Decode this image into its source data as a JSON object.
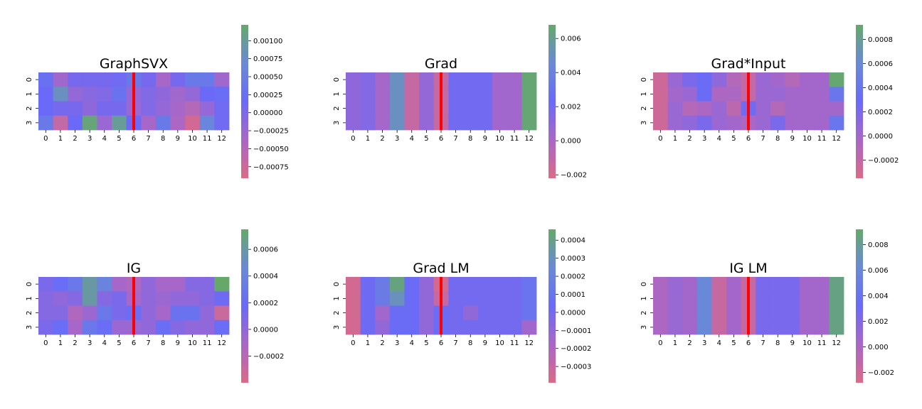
{
  "figure": {
    "colormap": [
      "#dc6a85",
      "#a967c6",
      "#6a6af8",
      "#6a8ad6",
      "#66a86a"
    ]
  },
  "chart_data": [
    {
      "type": "heatmap",
      "title": "GraphSVX",
      "x_ticks": [
        "0",
        "1",
        "2",
        "3",
        "4",
        "5",
        "6",
        "7",
        "8",
        "9",
        "10",
        "11",
        "12"
      ],
      "y_ticks": [
        "0",
        "1",
        "2",
        "3"
      ],
      "vmin": -0.00091,
      "vmax": 0.00122,
      "colorbar_ticks": [
        "0.00100",
        "0.00075",
        "0.00050",
        "0.00025",
        "0.00000",
        "−0.00025",
        "−0.00050",
        "−0.00075"
      ],
      "colorbar_values": [
        0.001,
        0.00075,
        0.0005,
        0.00025,
        0,
        -0.00025,
        -0.0005,
        -0.00075
      ],
      "divider_after_column": 6,
      "divider_color": "#ff0000",
      "values": [
        [
          0.00025,
          -0.0003,
          5e-05,
          5e-05,
          5e-05,
          0.0001,
          0.0004,
          5e-05,
          -0.00035,
          5e-05,
          0.0004,
          0.0004,
          -0.0003
        ],
        [
          0.00015,
          0.0008,
          -0.0002,
          -0.0001,
          -5e-05,
          0.0003,
          -0.0002,
          -5e-05,
          -0.00015,
          -0.0003,
          -0.0002,
          0.00015,
          0.0002
        ],
        [
          0.00015,
          5e-05,
          5e-05,
          -0.00015,
          5e-05,
          5e-05,
          -0.00025,
          -5e-05,
          -0.0002,
          -0.00035,
          -0.0005,
          -0.0002,
          0.0001
        ],
        [
          0.0004,
          -0.00065,
          0.00015,
          0.00115,
          -0.00025,
          0.001,
          0.00015,
          -0.00035,
          0.0004,
          -0.0004,
          -0.0008,
          0.0006,
          0.0001
        ]
      ]
    },
    {
      "type": "heatmap",
      "title": "Grad",
      "x_ticks": [
        "0",
        "1",
        "2",
        "3",
        "4",
        "5",
        "6",
        "7",
        "8",
        "9",
        "10",
        "11",
        "12"
      ],
      "y_ticks": [
        "0",
        "1",
        "2",
        "3"
      ],
      "vmin": -0.0022,
      "vmax": 0.0068,
      "colorbar_ticks": [
        "0.006",
        "0.004",
        "0.002",
        "0.000",
        "−0.002"
      ],
      "colorbar_values": [
        0.006,
        0.004,
        0.002,
        0,
        -0.002
      ],
      "divider_after_column": 6,
      "divider_color": "#ff0000",
      "values": [
        [
          0.001,
          0.0014,
          0.0002,
          0.005,
          -0.0012,
          0.0008,
          -0.0012,
          0.002,
          0.002,
          0.002,
          0.0003,
          0.0003,
          0.0066
        ],
        [
          0.001,
          0.0014,
          0.0002,
          0.005,
          -0.0012,
          0.0008,
          -0.0012,
          0.002,
          0.002,
          0.002,
          0.0003,
          0.0003,
          0.0066
        ],
        [
          0.001,
          0.0014,
          0.0002,
          0.005,
          -0.0012,
          0.0008,
          -0.0012,
          0.002,
          0.002,
          0.002,
          0.0003,
          0.0003,
          0.0066
        ],
        [
          0.001,
          0.0014,
          0.0002,
          0.005,
          -0.0012,
          0.0008,
          -0.0012,
          0.002,
          0.002,
          0.002,
          0.0003,
          0.0003,
          0.0066
        ]
      ]
    },
    {
      "type": "heatmap",
      "title": "Grad*Input",
      "x_ticks": [
        "0",
        "1",
        "2",
        "3",
        "4",
        "5",
        "6",
        "7",
        "8",
        "9",
        "10",
        "11",
        "12"
      ],
      "y_ticks": [
        "0",
        "1",
        "2",
        "3"
      ],
      "vmin": -0.00035,
      "vmax": 0.00092,
      "colorbar_ticks": [
        "0.0008",
        "0.0006",
        "0.0004",
        "0.0002",
        "0.0000",
        "−0.0002"
      ],
      "colorbar_values": [
        0.0008,
        0.0006,
        0.0004,
        0.0002,
        0,
        -0.0002
      ],
      "divider_after_column": 6,
      "divider_color": "#ff0000",
      "values": [
        [
          -0.00025,
          5e-05,
          0.0002,
          0.0003,
          0.0001,
          -0.0001,
          -0.0002,
          5e-05,
          0.0,
          -0.0001,
          0.0,
          0.0,
          0.0009
        ],
        [
          -0.00025,
          0.0,
          5e-05,
          0.0003,
          -5e-05,
          -5e-05,
          -0.0002,
          5e-05,
          5e-05,
          0.0,
          0.0,
          0.0,
          0.0004
        ],
        [
          -0.00025,
          5e-05,
          -0.0001,
          -5e-05,
          5e-05,
          -0.00015,
          0.00025,
          5e-05,
          -0.0001,
          0.0,
          0.0,
          0.0,
          0.0
        ],
        [
          -0.00025,
          5e-05,
          0.0001,
          0.0002,
          5e-05,
          0.0,
          -5e-05,
          5e-05,
          0.0002,
          0.0,
          0.0,
          0.0,
          0.0004
        ]
      ]
    },
    {
      "type": "heatmap",
      "title": "IG",
      "x_ticks": [
        "0",
        "1",
        "2",
        "3",
        "4",
        "5",
        "6",
        "7",
        "8",
        "9",
        "10",
        "11",
        "12"
      ],
      "y_ticks": [
        "0",
        "1",
        "2",
        "3"
      ],
      "vmin": -0.0004,
      "vmax": 0.00075,
      "colorbar_ticks": [
        "0.0006",
        "0.0004",
        "0.0002",
        "0.0000",
        "−0.0002"
      ],
      "colorbar_values": [
        0.0006,
        0.0004,
        0.0002,
        0,
        -0.0002
      ],
      "divider_after_column": 6,
      "divider_color": "#ff0000",
      "values": [
        [
          0.0001,
          0.0002,
          0.0003,
          0.0006,
          0.0004,
          -0.0001,
          -0.00015,
          0.0,
          -0.0001,
          -0.0001,
          5e-05,
          5e-05,
          0.00075
        ],
        [
          5e-05,
          0.0,
          5e-05,
          0.0006,
          5e-05,
          0.0001,
          -0.0001,
          0.0,
          -5e-05,
          0.0,
          0.0,
          5e-05,
          0.00015
        ],
        [
          5e-05,
          5e-05,
          -0.00015,
          -5e-05,
          0.0003,
          0.0001,
          0.0002,
          0.0,
          -0.0001,
          0.00025,
          0.00025,
          0.0,
          -0.0003
        ],
        [
          0.0001,
          0.0002,
          -0.0001,
          0.0003,
          0.0002,
          -5e-05,
          -5e-05,
          0.0,
          0.0002,
          5e-05,
          0.0,
          0.0,
          0.0002
        ]
      ]
    },
    {
      "type": "heatmap",
      "title": "Grad LM",
      "x_ticks": [
        "0",
        "1",
        "2",
        "3",
        "4",
        "5",
        "6",
        "7",
        "8",
        "9",
        "10",
        "11",
        "12"
      ],
      "y_ticks": [
        "0",
        "1",
        "2",
        "3"
      ],
      "vmin": -0.00039,
      "vmax": 0.00046,
      "colorbar_ticks": [
        "0.0004",
        "0.0003",
        "0.0002",
        "0.0001",
        "0.0000",
        "−0.0001",
        "−0.0002",
        "−0.0003"
      ],
      "colorbar_values": [
        0.0004,
        0.0003,
        0.0002,
        0.0001,
        0,
        -0.0001,
        -0.0002,
        -0.0003
      ],
      "divider_after_column": 6,
      "divider_color": "#ff0000",
      "values": [
        [
          -0.00035,
          2e-05,
          0.00015,
          0.00042,
          5e-05,
          -0.0001,
          -0.00035,
          0.0,
          0.0,
          0.0,
          0.0,
          0.0,
          0.0001
        ],
        [
          -0.00035,
          2e-05,
          0.00015,
          0.0003,
          5e-05,
          -0.0001,
          -0.0003,
          0.0,
          0.0,
          0.0,
          0.0,
          0.0,
          0.0001
        ],
        [
          -0.00035,
          2e-05,
          -0.00015,
          5e-05,
          5e-05,
          -0.0001,
          5e-05,
          0.0,
          -0.0001,
          0.0,
          0.0,
          0.0,
          0.0001
        ],
        [
          -0.00035,
          2e-05,
          -0.0001,
          5e-05,
          5e-05,
          -0.0001,
          5e-05,
          0.0,
          0.0,
          0.0,
          0.0,
          0.0,
          -0.00015
        ]
      ]
    },
    {
      "type": "heatmap",
      "title": "IG LM",
      "x_ticks": [
        "0",
        "1",
        "2",
        "3",
        "4",
        "5",
        "6",
        "7",
        "8",
        "9",
        "10",
        "11",
        "12"
      ],
      "y_ticks": [
        "0",
        "1",
        "2",
        "3"
      ],
      "vmin": -0.0028,
      "vmax": 0.0092,
      "colorbar_ticks": [
        "0.008",
        "0.006",
        "0.004",
        "0.002",
        "0.000",
        "−0.002"
      ],
      "colorbar_values": [
        0.008,
        0.006,
        0.004,
        0.002,
        0,
        -0.002
      ],
      "divider_after_column": 6,
      "divider_color": "#ff0000",
      "values": [
        [
          0.0,
          0.001,
          0.0005,
          0.006,
          -0.0015,
          0.0005,
          -0.0015,
          0.0025,
          0.0025,
          0.0025,
          0.0005,
          0.0005,
          0.0085
        ],
        [
          0.0,
          0.001,
          0.0005,
          0.006,
          -0.0015,
          0.0005,
          -0.0015,
          0.0025,
          0.0025,
          0.0025,
          0.0005,
          0.0005,
          0.0085
        ],
        [
          0.0,
          0.001,
          0.0005,
          0.006,
          -0.0015,
          0.0005,
          -0.0015,
          0.0025,
          0.0025,
          0.0025,
          0.0005,
          0.0005,
          0.0085
        ],
        [
          0.0,
          0.001,
          0.0005,
          0.006,
          -0.0015,
          0.0005,
          -0.0015,
          0.0025,
          0.0025,
          0.0025,
          0.0005,
          0.0005,
          0.0085
        ]
      ]
    }
  ]
}
